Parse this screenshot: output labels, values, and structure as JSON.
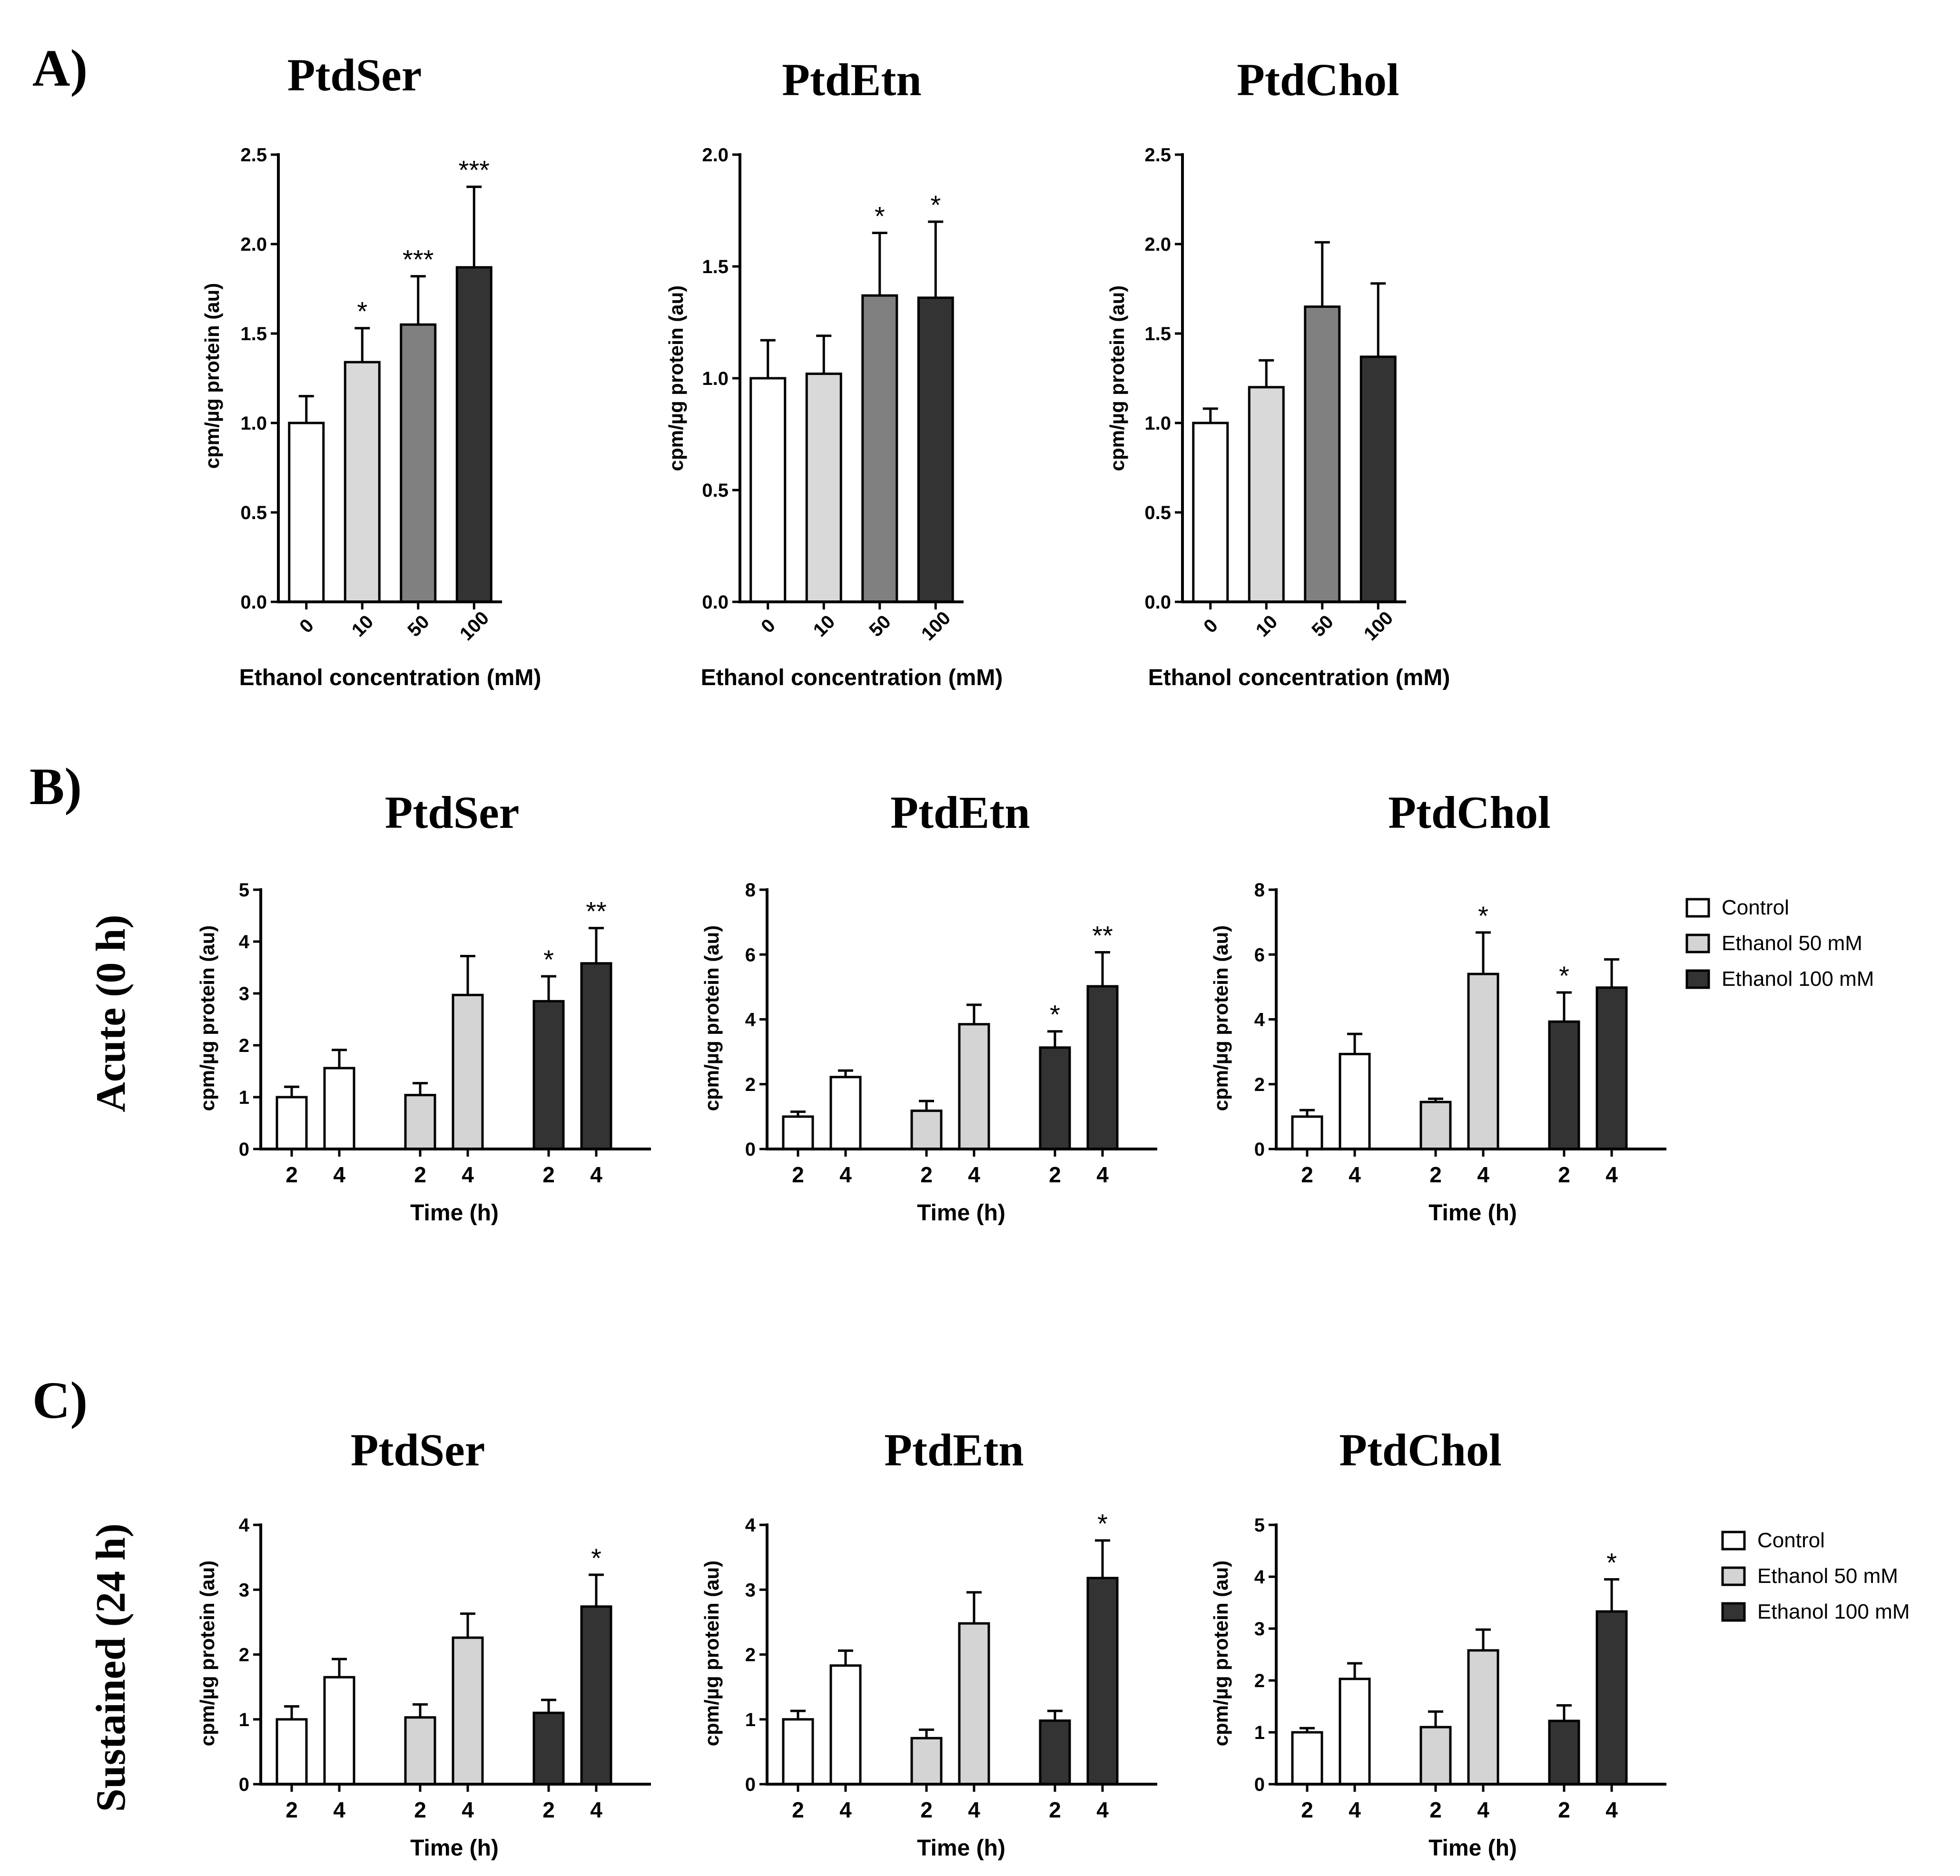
{
  "figure": {
    "panel_labels": {
      "A": "A)",
      "B": "B)",
      "C": "C)"
    },
    "row_labels": {
      "B": "Acute (0 h)",
      "C": "Sustained (24 h)"
    },
    "legend": {
      "control": "Control",
      "ethanol50": "Ethanol 50 mM",
      "ethanol100": "Ethanol 100 mM"
    },
    "colors": {
      "control": "#ffffff",
      "ethanol10": "#d9d9d9",
      "ethanol50": "#d4d4d4",
      "ethanol50_dose": "#808080",
      "ethanol100": "#333333",
      "axis": "#000000"
    }
  },
  "chart_data": [
    {
      "id": "A-PtdSer",
      "type": "bar",
      "title": "PtdSer",
      "categories": [
        "0",
        "10",
        "50",
        "100"
      ],
      "values": [
        1.0,
        1.34,
        1.55,
        1.87
      ],
      "errors": [
        0.15,
        0.19,
        0.27,
        0.45
      ],
      "significance": [
        "",
        "*",
        "***",
        "***"
      ],
      "ylabel": "cpm/µg protein (au)",
      "xlabel": "Ethanol concentration (mM)",
      "ylim": [
        0,
        2.5
      ],
      "yticks": [
        "0.0",
        "0.5",
        "1.0",
        "1.5",
        "2.0",
        "2.5"
      ]
    },
    {
      "id": "A-PtdEtn",
      "type": "bar",
      "title": "PtdEtn",
      "categories": [
        "0",
        "10",
        "50",
        "100"
      ],
      "values": [
        1.0,
        1.02,
        1.37,
        1.36
      ],
      "errors": [
        0.17,
        0.17,
        0.28,
        0.34
      ],
      "significance": [
        "",
        "",
        "*",
        "*"
      ],
      "ylabel": "cpm/µg protein (au)",
      "xlabel": "Ethanol concentration (mM)",
      "ylim": [
        0,
        2.0
      ],
      "yticks": [
        "0.0",
        "0.5",
        "1.0",
        "1.5",
        "2.0"
      ]
    },
    {
      "id": "A-PtdChol",
      "type": "bar",
      "title": "PtdChol",
      "categories": [
        "0",
        "10",
        "50",
        "100"
      ],
      "values": [
        1.0,
        1.2,
        1.65,
        1.37
      ],
      "errors": [
        0.08,
        0.15,
        0.36,
        0.41
      ],
      "significance": [
        "",
        "",
        "",
        ""
      ],
      "ylabel": "cpm/µg protein (au)",
      "xlabel": "Ethanol concentration (mM)",
      "ylim": [
        0,
        2.5
      ],
      "yticks": [
        "0.0",
        "0.5",
        "1.0",
        "1.5",
        "2.0",
        "2.5"
      ]
    },
    {
      "id": "B-PtdSer",
      "type": "bar",
      "title": "PtdSer",
      "categories": [
        "2",
        "4",
        "2",
        "4",
        "2",
        "4"
      ],
      "groups": [
        "Control",
        "Control",
        "Ethanol 50 mM",
        "Ethanol 50 mM",
        "Ethanol 100 mM",
        "Ethanol 100 mM"
      ],
      "values": [
        1.0,
        1.56,
        1.04,
        2.97,
        2.85,
        3.58
      ],
      "errors": [
        0.2,
        0.35,
        0.23,
        0.75,
        0.48,
        0.68
      ],
      "significance": [
        "",
        "",
        "",
        "",
        "*",
        "**"
      ],
      "ylabel": "cpm/µg protein (au)",
      "xlabel": "Time (h)",
      "ylim": [
        0,
        5
      ],
      "yticks": [
        "0",
        "1",
        "2",
        "3",
        "4",
        "5"
      ]
    },
    {
      "id": "B-PtdEtn",
      "type": "bar",
      "title": "PtdEtn",
      "categories": [
        "2",
        "4",
        "2",
        "4",
        "2",
        "4"
      ],
      "groups": [
        "Control",
        "Control",
        "Ethanol 50 mM",
        "Ethanol 50 mM",
        "Ethanol 100 mM",
        "Ethanol 100 mM"
      ],
      "values": [
        1.0,
        2.22,
        1.18,
        3.85,
        3.13,
        5.02
      ],
      "errors": [
        0.15,
        0.2,
        0.3,
        0.6,
        0.5,
        1.05
      ],
      "significance": [
        "",
        "",
        "",
        "",
        "*",
        "**"
      ],
      "ylabel": "cpm/µg protein (au)",
      "xlabel": "Time (h)",
      "ylim": [
        0,
        8
      ],
      "yticks": [
        "0",
        "2",
        "4",
        "6",
        "8"
      ]
    },
    {
      "id": "B-PtdChol",
      "type": "bar",
      "title": "PtdChol",
      "categories": [
        "2",
        "4",
        "2",
        "4",
        "2",
        "4"
      ],
      "groups": [
        "Control",
        "Control",
        "Ethanol 50 mM",
        "Ethanol 50 mM",
        "Ethanol 100 mM",
        "Ethanol 100 mM"
      ],
      "values": [
        1.0,
        2.93,
        1.45,
        5.4,
        3.93,
        4.98
      ],
      "errors": [
        0.2,
        0.62,
        0.1,
        1.28,
        0.9,
        0.87
      ],
      "significance": [
        "",
        "",
        "",
        "*",
        "*",
        ""
      ],
      "ylabel": "cpm/µg protein (au)",
      "xlabel": "Time (h)",
      "ylim": [
        0,
        8
      ],
      "yticks": [
        "0",
        "2",
        "4",
        "6",
        "8"
      ]
    },
    {
      "id": "C-PtdSer",
      "type": "bar",
      "title": "PtdSer",
      "categories": [
        "2",
        "4",
        "2",
        "4",
        "2",
        "4"
      ],
      "groups": [
        "Control",
        "Control",
        "Ethanol 50 mM",
        "Ethanol 50 mM",
        "Ethanol 100 mM",
        "Ethanol 100 mM"
      ],
      "values": [
        1.0,
        1.65,
        1.03,
        2.26,
        1.1,
        2.74
      ],
      "errors": [
        0.2,
        0.28,
        0.2,
        0.37,
        0.2,
        0.49
      ],
      "significance": [
        "",
        "",
        "",
        "",
        "",
        "*"
      ],
      "ylabel": "cpm/µg protein (au)",
      "xlabel": "Time (h)",
      "ylim": [
        0,
        4
      ],
      "yticks": [
        "0",
        "1",
        "2",
        "3",
        "4"
      ]
    },
    {
      "id": "C-PtdEtn",
      "type": "bar",
      "title": "PtdEtn",
      "categories": [
        "2",
        "4",
        "2",
        "4",
        "2",
        "4"
      ],
      "groups": [
        "Control",
        "Control",
        "Ethanol 50 mM",
        "Ethanol 50 mM",
        "Ethanol 100 mM",
        "Ethanol 100 mM"
      ],
      "values": [
        1.0,
        1.83,
        0.71,
        2.48,
        0.98,
        3.18
      ],
      "errors": [
        0.13,
        0.23,
        0.13,
        0.48,
        0.15,
        0.58
      ],
      "significance": [
        "",
        "",
        "",
        "",
        "",
        "*"
      ],
      "ylabel": "cpm/µg protein (au)",
      "xlabel": "Time (h)",
      "ylim": [
        0,
        4
      ],
      "yticks": [
        "0",
        "1",
        "2",
        "3",
        "4"
      ]
    },
    {
      "id": "C-PtdChol",
      "type": "bar",
      "title": "PtdChol",
      "categories": [
        "2",
        "4",
        "2",
        "4",
        "2",
        "4"
      ],
      "groups": [
        "Control",
        "Control",
        "Ethanol 50 mM",
        "Ethanol 50 mM",
        "Ethanol 100 mM",
        "Ethanol 100 mM"
      ],
      "values": [
        1.0,
        2.03,
        1.1,
        2.58,
        1.22,
        3.33
      ],
      "errors": [
        0.08,
        0.3,
        0.3,
        0.4,
        0.3,
        0.62
      ],
      "significance": [
        "",
        "",
        "",
        "",
        "",
        "*"
      ],
      "ylabel": "cpm/µg protein (au)",
      "xlabel": "Time (h)",
      "ylim": [
        0,
        5
      ],
      "yticks": [
        "0",
        "1",
        "2",
        "3",
        "4",
        "5"
      ]
    }
  ]
}
